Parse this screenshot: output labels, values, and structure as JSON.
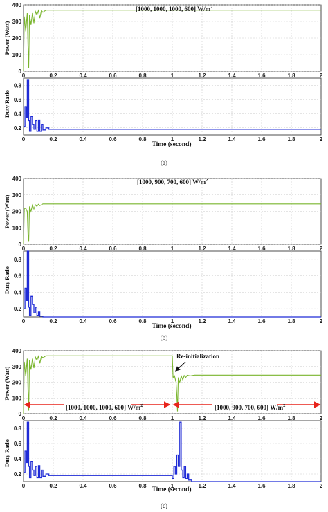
{
  "colors": {
    "power": "#7ab52e",
    "duty": "#1f2bd6",
    "marker": "#e8231b",
    "annotation": "#111111"
  },
  "panels": [
    {
      "label": "(a)",
      "irradiance_text": "[1000, 1000, 1000, 600] W/m",
      "power_ylabel": "Power (Watt)",
      "duty_ylabel": "Duty Ratio",
      "xlabel": "Time (second)"
    },
    {
      "label": "(b)",
      "irradiance_text": "[1000, 900, 700, 600] W/m",
      "power_ylabel": "Power (Watt)",
      "duty_ylabel": "Duty Ratio",
      "xlabel": "Time (second)"
    },
    {
      "label": "(c)",
      "irradiance_text_left": "[1000, 1000, 1000, 600] W/m",
      "irradiance_text_right": "[1000, 900, 700, 600] W/m",
      "annotation": "Re-initialization",
      "power_ylabel": "Power (Watt)",
      "duty_ylabel": "Duty Ratio",
      "xlabel": "Time (second)"
    }
  ],
  "superscript": "2",
  "chart_data": [
    {
      "type": "line",
      "panel": "a-power",
      "ylim": [
        0,
        400
      ],
      "xlim": [
        0,
        2
      ],
      "yticks": [
        "0",
        "100",
        "200",
        "300",
        "400"
      ],
      "xticks": [
        "0",
        "0.2",
        "0.4",
        "0.6",
        "0.8",
        "1",
        "1.2",
        "1.4",
        "1.6",
        "1.8",
        "2"
      ],
      "x": [
        0,
        0.005,
        0.015,
        0.025,
        0.03,
        0.035,
        0.04,
        0.05,
        0.06,
        0.07,
        0.08,
        0.09,
        0.1,
        0.11,
        0.12,
        0.13,
        0.15,
        0.18,
        0.2,
        2
      ],
      "y": [
        0,
        330,
        240,
        350,
        150,
        20,
        340,
        280,
        350,
        290,
        360,
        340,
        365,
        320,
        365,
        355,
        368,
        368,
        368,
        368
      ]
    },
    {
      "type": "line",
      "panel": "a-duty",
      "ylim": [
        0.1,
        0.9
      ],
      "xlim": [
        0,
        2
      ],
      "yticks": [
        "0.2",
        "0.4",
        "0.6",
        "0.8"
      ],
      "xticks": [
        "0",
        "0.2",
        "0.4",
        "0.6",
        "0.8",
        "1",
        "1.2",
        "1.4",
        "1.6",
        "1.8",
        "2"
      ],
      "x": [
        0,
        0.01,
        0.01,
        0.02,
        0.02,
        0.025,
        0.025,
        0.035,
        0.035,
        0.04,
        0.04,
        0.05,
        0.05,
        0.06,
        0.06,
        0.07,
        0.07,
        0.08,
        0.08,
        0.09,
        0.09,
        0.1,
        0.1,
        0.11,
        0.11,
        0.12,
        0.12,
        0.13,
        0.13,
        0.15,
        0.15,
        0.17,
        0.17,
        2
      ],
      "y": [
        0.22,
        0.22,
        0.5,
        0.5,
        0.35,
        0.35,
        0.88,
        0.88,
        0.3,
        0.3,
        0.15,
        0.15,
        0.36,
        0.36,
        0.25,
        0.25,
        0.18,
        0.18,
        0.3,
        0.3,
        0.15,
        0.15,
        0.31,
        0.31,
        0.15,
        0.15,
        0.25,
        0.25,
        0.17,
        0.17,
        0.2,
        0.2,
        0.18,
        0.18
      ]
    },
    {
      "type": "line",
      "panel": "b-power",
      "ylim": [
        0,
        400
      ],
      "xlim": [
        0,
        2
      ],
      "yticks": [
        "0",
        "100",
        "200",
        "300",
        "400"
      ],
      "xticks": [
        "0",
        "0.2",
        "0.4",
        "0.6",
        "0.8",
        "1",
        "1.2",
        "1.4",
        "1.6",
        "1.8",
        "2"
      ],
      "x": [
        0,
        0.005,
        0.015,
        0.025,
        0.03,
        0.035,
        0.04,
        0.05,
        0.06,
        0.07,
        0.08,
        0.09,
        0.1,
        0.11,
        0.13,
        0.2,
        2
      ],
      "y": [
        0,
        215,
        220,
        200,
        60,
        15,
        230,
        200,
        238,
        215,
        240,
        230,
        243,
        235,
        245,
        245,
        245
      ]
    },
    {
      "type": "line",
      "panel": "b-duty",
      "ylim": [
        0.1,
        0.9
      ],
      "xlim": [
        0,
        2
      ],
      "yticks": [
        "0.2",
        "0.4",
        "0.6",
        "0.8"
      ],
      "xticks": [
        "0",
        "0.2",
        "0.4",
        "0.6",
        "0.8",
        "1",
        "1.2",
        "1.4",
        "1.6",
        "1.8",
        "2"
      ],
      "x": [
        0,
        0.01,
        0.01,
        0.02,
        0.02,
        0.025,
        0.025,
        0.035,
        0.035,
        0.04,
        0.04,
        0.05,
        0.05,
        0.06,
        0.06,
        0.07,
        0.07,
        0.08,
        0.08,
        0.09,
        0.09,
        0.1,
        0.1,
        0.11,
        0.11,
        0.13,
        0.13,
        2
      ],
      "y": [
        0.2,
        0.2,
        0.45,
        0.45,
        0.3,
        0.3,
        0.9,
        0.9,
        0.22,
        0.22,
        0.12,
        0.12,
        0.35,
        0.35,
        0.25,
        0.25,
        0.15,
        0.15,
        0.22,
        0.22,
        0.12,
        0.12,
        0.16,
        0.16,
        0.11,
        0.11,
        0.1,
        0.1
      ]
    },
    {
      "type": "line",
      "panel": "c-power",
      "ylim": [
        0,
        400
      ],
      "xlim": [
        0,
        2
      ],
      "yticks": [
        "0",
        "100",
        "200",
        "300",
        "400"
      ],
      "xticks": [
        "0",
        "0.2",
        "0.4",
        "0.6",
        "0.8",
        "1",
        "1.2",
        "1.4",
        "1.6",
        "1.8",
        "2"
      ],
      "x": [
        0,
        0.005,
        0.015,
        0.025,
        0.03,
        0.035,
        0.04,
        0.05,
        0.06,
        0.07,
        0.08,
        0.09,
        0.1,
        0.11,
        0.12,
        0.13,
        0.15,
        0.2,
        1.0,
        1.005,
        1.015,
        1.025,
        1.03,
        1.035,
        1.04,
        1.05,
        1.06,
        1.07,
        1.08,
        1.09,
        1.1,
        1.12,
        1.15,
        2
      ],
      "y": [
        0,
        330,
        240,
        350,
        150,
        20,
        340,
        280,
        350,
        290,
        360,
        340,
        365,
        320,
        365,
        355,
        368,
        368,
        368,
        230,
        240,
        200,
        120,
        15,
        230,
        200,
        240,
        215,
        242,
        230,
        244,
        240,
        245,
        245
      ]
    },
    {
      "type": "line",
      "panel": "c-duty",
      "ylim": [
        0.1,
        0.9
      ],
      "xlim": [
        0,
        2
      ],
      "yticks": [
        "0.2",
        "0.4",
        "0.6",
        "0.8"
      ],
      "xticks": [
        "0",
        "0.2",
        "0.4",
        "0.6",
        "0.8",
        "1",
        "1.2",
        "1.4",
        "1.6",
        "1.8",
        "2"
      ],
      "x": [
        0,
        0.01,
        0.01,
        0.02,
        0.02,
        0.025,
        0.025,
        0.035,
        0.035,
        0.04,
        0.04,
        0.05,
        0.05,
        0.06,
        0.06,
        0.07,
        0.07,
        0.08,
        0.08,
        0.09,
        0.09,
        0.1,
        0.1,
        0.11,
        0.11,
        0.12,
        0.12,
        0.13,
        0.13,
        0.15,
        0.15,
        0.17,
        0.17,
        1.0,
        1.0,
        1.01,
        1.01,
        1.02,
        1.02,
        1.03,
        1.03,
        1.04,
        1.04,
        1.05,
        1.05,
        1.06,
        1.06,
        1.07,
        1.07,
        1.08,
        1.08,
        1.09,
        1.09,
        1.1,
        1.1,
        1.11,
        1.11,
        1.13,
        1.13,
        2
      ],
      "y": [
        0.22,
        0.22,
        0.5,
        0.5,
        0.35,
        0.35,
        0.88,
        0.88,
        0.3,
        0.3,
        0.15,
        0.15,
        0.36,
        0.36,
        0.25,
        0.25,
        0.18,
        0.18,
        0.3,
        0.3,
        0.15,
        0.15,
        0.31,
        0.31,
        0.15,
        0.15,
        0.25,
        0.25,
        0.17,
        0.17,
        0.2,
        0.2,
        0.18,
        0.18,
        0.14,
        0.14,
        0.3,
        0.3,
        0.2,
        0.2,
        0.45,
        0.45,
        0.3,
        0.3,
        0.88,
        0.88,
        0.25,
        0.25,
        0.15,
        0.15,
        0.3,
        0.3,
        0.14,
        0.14,
        0.2,
        0.2,
        0.12,
        0.12,
        0.1,
        0.1
      ]
    }
  ]
}
